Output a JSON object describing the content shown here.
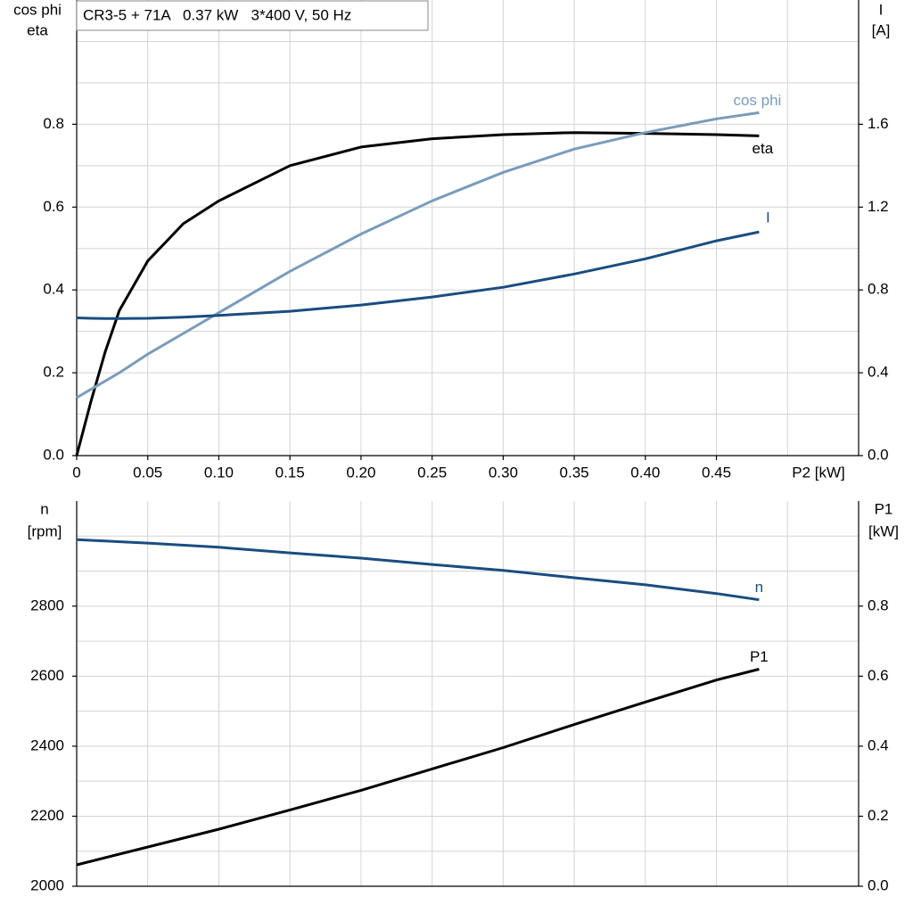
{
  "chart_data": [
    {
      "type": "line",
      "title": "CR3-5 + 71A   0.37 kW   3*400 V, 50 Hz",
      "ylabel": [
        "cos phi",
        "eta"
      ],
      "y2label": [
        "I",
        "[A]"
      ],
      "xlabel": "P2 [kW]",
      "xlim": [
        0,
        0.55
      ],
      "xticks": [
        0,
        0.05,
        {
          "value": 0.1,
          "label": "0.10"
        },
        0.15,
        {
          "value": 0.2,
          "label": "0.20"
        },
        0.25,
        {
          "value": 0.3,
          "label": "0.30"
        },
        0.35,
        {
          "value": 0.4,
          "label": "0.40"
        },
        0.45
      ],
      "ylim": [
        0,
        1.1
      ],
      "yticks": [
        {
          "value": 0,
          "label": "0.0"
        },
        0.2,
        0.4,
        0.6,
        0.8
      ],
      "y2lim": [
        0,
        2.2
      ],
      "y2ticks": [
        {
          "value": 0,
          "label": "0.0"
        },
        0.4,
        0.8,
        1.2,
        1.6
      ],
      "grid": true,
      "x": [
        0,
        0.01,
        0.02,
        0.03,
        0.05,
        0.075,
        0.1,
        0.15,
        0.2,
        0.25,
        0.3,
        0.35,
        0.4,
        0.45,
        0.48
      ],
      "series": [
        {
          "name": "eta",
          "color": "#000000",
          "values": [
            0,
            0.13,
            0.25,
            0.35,
            0.47,
            0.56,
            0.615,
            0.7,
            0.745,
            0.765,
            0.775,
            0.78,
            0.778,
            0.775,
            0.772
          ]
        },
        {
          "name": "cos phi",
          "color": "#7a9cbb",
          "values": [
            0.14,
            0.16,
            0.18,
            0.2,
            0.245,
            0.295,
            0.345,
            0.445,
            0.535,
            0.615,
            0.684,
            0.74,
            0.78,
            0.813,
            0.828
          ]
        },
        {
          "name": "I",
          "color": "#1a4d80",
          "axis": "y2",
          "values": [
            0.665,
            0.663,
            0.662,
            0.662,
            0.663,
            0.668,
            0.677,
            0.697,
            0.727,
            0.766,
            0.813,
            0.877,
            0.95,
            1.037,
            1.08
          ]
        }
      ]
    },
    {
      "type": "line",
      "ylabel": [
        "n",
        "[rpm]"
      ],
      "y2label": [
        "P1",
        "[kW]"
      ],
      "xlim": [
        0,
        0.55
      ],
      "ylim": [
        2000,
        3100
      ],
      "yticks": [
        2000,
        2200,
        2400,
        2600,
        2800
      ],
      "y2lim": [
        0,
        1.1
      ],
      "y2ticks": [
        {
          "value": 0,
          "label": "0.0"
        },
        0.2,
        0.4,
        0.6,
        0.8
      ],
      "grid": true,
      "x": [
        0,
        0.05,
        0.1,
        0.15,
        0.2,
        0.25,
        0.3,
        0.35,
        0.4,
        0.45,
        0.48
      ],
      "series": [
        {
          "name": "n",
          "color": "#1a4d80",
          "values": [
            2990,
            2980,
            2968,
            2952,
            2937,
            2919,
            2902,
            2881,
            2861,
            2836,
            2818
          ]
        },
        {
          "name": "P1",
          "color": "#000000",
          "axis": "y2",
          "values": [
            0.061,
            0.112,
            0.163,
            0.218,
            0.274,
            0.335,
            0.396,
            0.462,
            0.526,
            0.589,
            0.62
          ]
        }
      ]
    }
  ]
}
